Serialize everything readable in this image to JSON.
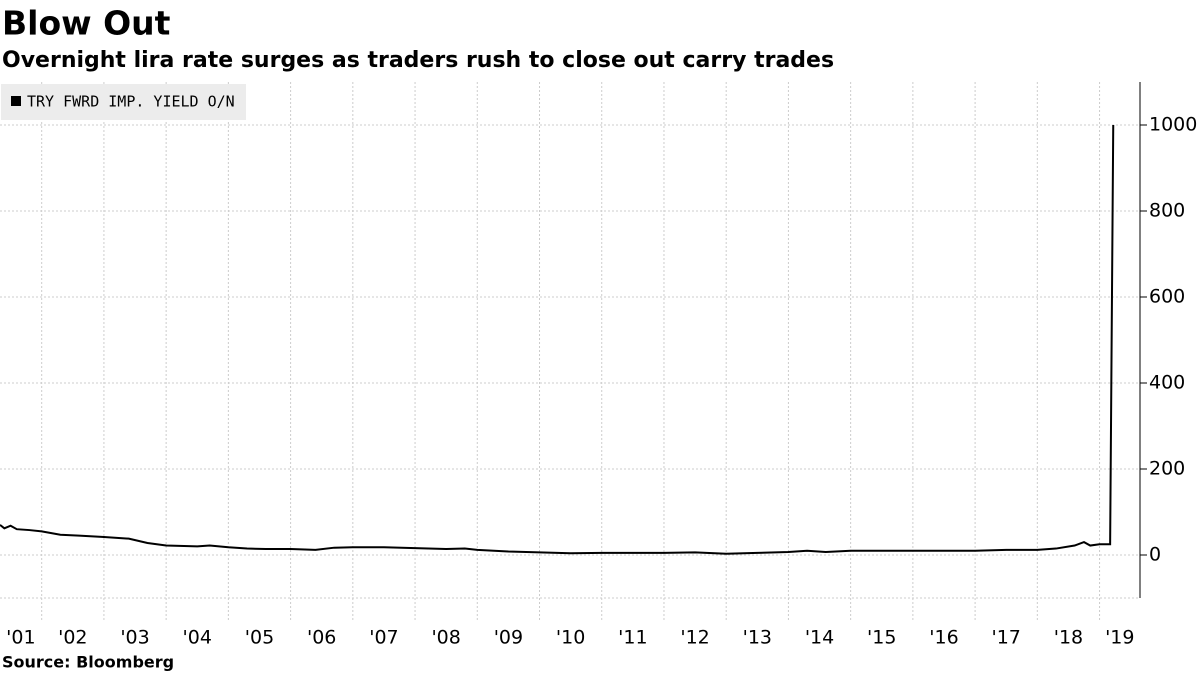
{
  "chart_data": {
    "type": "line",
    "title": "Blow Out",
    "subtitle": "Overnight lira rate surges as traders rush to close out carry trades",
    "source": "Source: Bloomberg",
    "legend": "top-left",
    "grid": true,
    "x": [
      2001.33,
      2001.4,
      2001.5,
      2001.6,
      2001.8,
      2002.0,
      2002.3,
      2002.6,
      2003.0,
      2003.4,
      2003.7,
      2004.0,
      2004.5,
      2004.7,
      2005.0,
      2005.3,
      2005.6,
      2006.0,
      2006.4,
      2006.7,
      2007.0,
      2007.5,
      2008.0,
      2008.5,
      2008.8,
      2009.0,
      2009.5,
      2010.0,
      2010.5,
      2011.0,
      2011.5,
      2012.0,
      2012.5,
      2013.0,
      2013.5,
      2014.0,
      2014.3,
      2014.6,
      2015.0,
      2015.5,
      2016.0,
      2016.5,
      2017.0,
      2017.5,
      2018.0,
      2018.3,
      2018.6,
      2018.75,
      2018.85,
      2019.0,
      2019.17,
      2019.22
    ],
    "series": [
      {
        "name": "TRY FWRD IMP. YIELD O/N",
        "color": "#000000",
        "values": [
          70,
          62,
          68,
          60,
          58,
          55,
          47,
          45,
          42,
          38,
          28,
          22,
          20,
          22,
          18,
          15,
          14,
          14,
          12,
          17,
          18,
          18,
          16,
          14,
          15,
          12,
          8,
          6,
          4,
          5,
          5,
          5,
          6,
          3,
          5,
          7,
          10,
          7,
          10,
          10,
          10,
          10,
          10,
          12,
          12,
          15,
          22,
          30,
          22,
          25,
          25,
          1000
        ]
      }
    ],
    "xlim": [
      2001.33,
      2019.65
    ],
    "xticks": [
      {
        "value": 2001,
        "label": "'01"
      },
      {
        "value": 2002,
        "label": "'02"
      },
      {
        "value": 2003,
        "label": "'03"
      },
      {
        "value": 2004,
        "label": "'04"
      },
      {
        "value": 2005,
        "label": "'05"
      },
      {
        "value": 2006,
        "label": "'06"
      },
      {
        "value": 2007,
        "label": "'07"
      },
      {
        "value": 2008,
        "label": "'08"
      },
      {
        "value": 2009,
        "label": "'09"
      },
      {
        "value": 2010,
        "label": "'10"
      },
      {
        "value": 2011,
        "label": "'11"
      },
      {
        "value": 2012,
        "label": "'12"
      },
      {
        "value": 2013,
        "label": "'13"
      },
      {
        "value": 2014,
        "label": "'14"
      },
      {
        "value": 2015,
        "label": "'15"
      },
      {
        "value": 2016,
        "label": "'16"
      },
      {
        "value": 2017,
        "label": "'17"
      },
      {
        "value": 2018,
        "label": "'18"
      },
      {
        "value": 2019,
        "label": "'19"
      }
    ],
    "ylim": [
      -100,
      1100
    ],
    "yticks": [
      0,
      200,
      400,
      600,
      800,
      1000
    ]
  }
}
